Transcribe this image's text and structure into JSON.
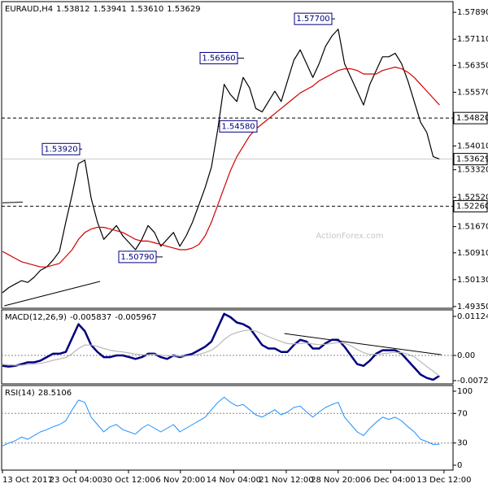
{
  "chart_data": [
    {
      "type": "line",
      "title": "EURAUD,H4",
      "quote": [
        {
          "value": 1.53812,
          "label": "1.53812"
        },
        {
          "value": 1.53941,
          "label": "1.53941"
        },
        {
          "value": 1.5361,
          "label": "1.53610"
        },
        {
          "value": 1.53629,
          "label": "1.53629"
        }
      ],
      "watermark": "ActionForex.com",
      "xlim": [
        0,
        71
      ],
      "ylim": [
        1.493,
        1.582
      ],
      "yticks": [
        {
          "value": 1.5789,
          "label": "1.57890"
        },
        {
          "value": 1.5711,
          "label": "1.57110"
        },
        {
          "value": 1.5635,
          "label": "1.56350"
        },
        {
          "value": 1.5557,
          "label": "1.55570"
        },
        {
          "value": 1.5401,
          "label": "1.54010"
        },
        {
          "value": 1.5332,
          "label": "1.53320"
        },
        {
          "value": 1.5252,
          "label": "1.52520"
        },
        {
          "value": 1.5167,
          "label": "1.51670"
        },
        {
          "value": 1.5091,
          "label": "1.50910"
        },
        {
          "value": 1.5013,
          "label": "1.50130"
        },
        {
          "value": 1.4935,
          "label": "1.49350"
        }
      ],
      "series": [
        {
          "color": "#000000",
          "values": [
            1.4975,
            1.499,
            1.5,
            1.501,
            1.5005,
            1.502,
            1.504,
            1.505,
            1.507,
            1.5095,
            1.518,
            1.526,
            1.535,
            1.536,
            1.525,
            1.518,
            1.513,
            1.515,
            1.517,
            1.514,
            1.512,
            1.51,
            1.513,
            1.517,
            1.515,
            1.511,
            1.513,
            1.515,
            1.511,
            1.514,
            1.518,
            1.523,
            1.528,
            1.534,
            1.545,
            1.558,
            1.555,
            1.553,
            1.56,
            1.557,
            1.551,
            1.55,
            1.553,
            1.556,
            1.553,
            1.559,
            1.565,
            1.568,
            1.564,
            1.56,
            1.564,
            1.569,
            1.572,
            1.574,
            1.564,
            1.56,
            1.556,
            1.552,
            1.558,
            1.562,
            1.566,
            1.566,
            1.567,
            1.564,
            1.559,
            1.553,
            1.547,
            1.544,
            1.537,
            1.5363
          ]
        },
        {
          "color": "#d40000",
          "values": [
            1.5095,
            1.5085,
            1.5075,
            1.5065,
            1.506,
            1.5055,
            1.505,
            1.505,
            1.5055,
            1.506,
            1.508,
            1.51,
            1.513,
            1.515,
            1.516,
            1.5165,
            1.5165,
            1.516,
            1.5155,
            1.515,
            1.514,
            1.513,
            1.5125,
            1.5125,
            1.512,
            1.5115,
            1.511,
            1.5105,
            1.51,
            1.51,
            1.5105,
            1.5115,
            1.514,
            1.518,
            1.523,
            1.528,
            1.533,
            1.537,
            1.54,
            1.543,
            1.545,
            1.5465,
            1.548,
            1.5495,
            1.551,
            1.5525,
            1.554,
            1.5555,
            1.5565,
            1.5575,
            1.559,
            1.56,
            1.561,
            1.562,
            1.5625,
            1.5625,
            1.562,
            1.561,
            1.561,
            1.561,
            1.562,
            1.5625,
            1.563,
            1.5625,
            1.5615,
            1.56,
            1.558,
            1.556,
            1.554,
            1.552
          ]
        }
      ],
      "annotations": [
        {
          "value": 1.5392,
          "label": "1.53920"
        },
        {
          "value": 1.5079,
          "label": "1.50790"
        },
        {
          "value": 1.5656,
          "label": "1.56560"
        },
        {
          "value": 1.5458,
          "label": "1.54580"
        },
        {
          "value": 1.577,
          "label": "1.57700"
        }
      ],
      "levels": [
        {
          "value": 1.5482,
          "label": "1.54820"
        },
        {
          "value": 1.5226,
          "label": "1.52260"
        }
      ],
      "last_price": {
        "value": 1.53629,
        "label": "1.53629"
      },
      "trendlines": [
        [
          [
            0.3,
            1.4937
          ],
          [
            15.4,
            1.5008
          ]
        ],
        [
          [
            0,
            1.5236
          ],
          [
            3.2,
            1.5238
          ]
        ]
      ]
    },
    {
      "type": "line",
      "title": "MACD(12,26,9)",
      "quote": [
        {
          "value": -0.005837,
          "label": "-0.005837"
        },
        {
          "value": -0.005967,
          "label": "-0.005967"
        }
      ],
      "xlim": [
        0,
        71
      ],
      "ylim": [
        -0.0082,
        0.01312
      ],
      "yticks": [
        0.011247,
        {
          "value": 0,
          "label": "0.00"
        },
        -0.007263
      ],
      "dotted_levels": [
        0
      ],
      "series": [
        {
          "color": "#000080",
          "width": 2.5,
          "values": [
            -0.003,
            -0.0032,
            -0.003,
            -0.0025,
            -0.002,
            -0.002,
            -0.0015,
            -0.0005,
            0.0005,
            0.0005,
            0.001,
            0.005,
            0.009,
            0.007,
            0.003,
            0.001,
            -0.0005,
            -0.0005,
            0.0,
            0.0,
            -0.0005,
            -0.001,
            -0.0005,
            0.0005,
            0.0005,
            -0.0005,
            -0.001,
            0.0,
            -0.0005,
            0.0,
            0.0005,
            0.0015,
            0.0025,
            0.004,
            0.008,
            0.012,
            0.011,
            0.0095,
            0.009,
            0.008,
            0.0055,
            0.003,
            0.002,
            0.002,
            0.001,
            0.001,
            0.003,
            0.0045,
            0.004,
            0.002,
            0.002,
            0.0035,
            0.0045,
            0.0045,
            0.0025,
            0.0,
            -0.0025,
            -0.003,
            -0.0015,
            0.0005,
            0.0015,
            0.0015,
            0.0015,
            0.0005,
            -0.0015,
            -0.0035,
            -0.0055,
            -0.0065,
            -0.007,
            -0.005837
          ]
        },
        {
          "color": "#b8b8b8",
          "width": 1.2,
          "values": [
            -0.0025,
            -0.0027,
            -0.0028,
            -0.0028,
            -0.0026,
            -0.0025,
            -0.0023,
            -0.0019,
            -0.0014,
            -0.001,
            -0.0006,
            0.0005,
            0.002,
            0.003,
            0.003,
            0.0026,
            0.002,
            0.0015,
            0.0012,
            0.001,
            0.0007,
            0.0004,
            0.0002,
            0.0002,
            0.0003,
            0.0001,
            -0.0001,
            -0.0001,
            -0.0002,
            -0.0002,
            0.0,
            0.0003,
            0.0008,
            0.0015,
            0.0028,
            0.0046,
            0.0059,
            0.0066,
            0.0071,
            0.0073,
            0.007,
            0.0062,
            0.0054,
            0.0047,
            0.004,
            0.0034,
            0.0033,
            0.0035,
            0.0036,
            0.0033,
            0.0031,
            0.0032,
            0.0035,
            0.0037,
            0.0035,
            0.0028,
            0.0017,
            0.0008,
            0.0003,
            0.0003,
            0.0005,
            0.0007,
            0.0009,
            0.0008,
            0.0004,
            -0.0004,
            -0.0018,
            -0.0032,
            -0.0045,
            -0.005967
          ]
        }
      ],
      "trendlines": [
        [
          [
            44.5,
            0.0063
          ],
          [
            69.3,
            0.0002
          ]
        ]
      ]
    },
    {
      "type": "line",
      "title": "RSI(14)",
      "quote": [
        {
          "value": 28.5106,
          "label": "28.5106"
        }
      ],
      "xlim": [
        0,
        71
      ],
      "ylim": [
        -6.6,
        107.7
      ],
      "yticks": [
        100,
        70,
        30,
        0
      ],
      "dotted_levels": [
        70,
        30
      ],
      "series": [
        {
          "color": "#1e90ff",
          "width": 1,
          "values": [
            26,
            30,
            33,
            38,
            35,
            40,
            45,
            48,
            52,
            55,
            60,
            75,
            88,
            85,
            65,
            55,
            45,
            52,
            55,
            48,
            45,
            42,
            50,
            55,
            50,
            45,
            50,
            55,
            45,
            50,
            55,
            60,
            65,
            75,
            85,
            92,
            85,
            80,
            82,
            75,
            68,
            65,
            70,
            75,
            68,
            72,
            78,
            80,
            72,
            65,
            72,
            78,
            82,
            85,
            65,
            55,
            45,
            40,
            50,
            58,
            65,
            62,
            65,
            60,
            52,
            45,
            35,
            32,
            28,
            28.5106
          ]
        }
      ],
      "xticks": [
        {
          "value": 0,
          "label": "13 Oct 2017"
        },
        {
          "value": 11.6,
          "label": "23 Oct 04:00"
        },
        {
          "value": 19.9,
          "label": "30 Oct 12:00"
        },
        {
          "value": 28.1,
          "label": "6 Nov 20:00"
        },
        {
          "value": 36.5,
          "label": "14 Nov 04:00"
        },
        {
          "value": 44.8,
          "label": "21 Nov 12:00"
        },
        {
          "value": 53,
          "label": "28 Nov 20:00"
        },
        {
          "value": 61.3,
          "label": "6 Dec 04:00"
        },
        {
          "value": 69.7,
          "label": "13 Dec 12:00"
        }
      ]
    }
  ]
}
